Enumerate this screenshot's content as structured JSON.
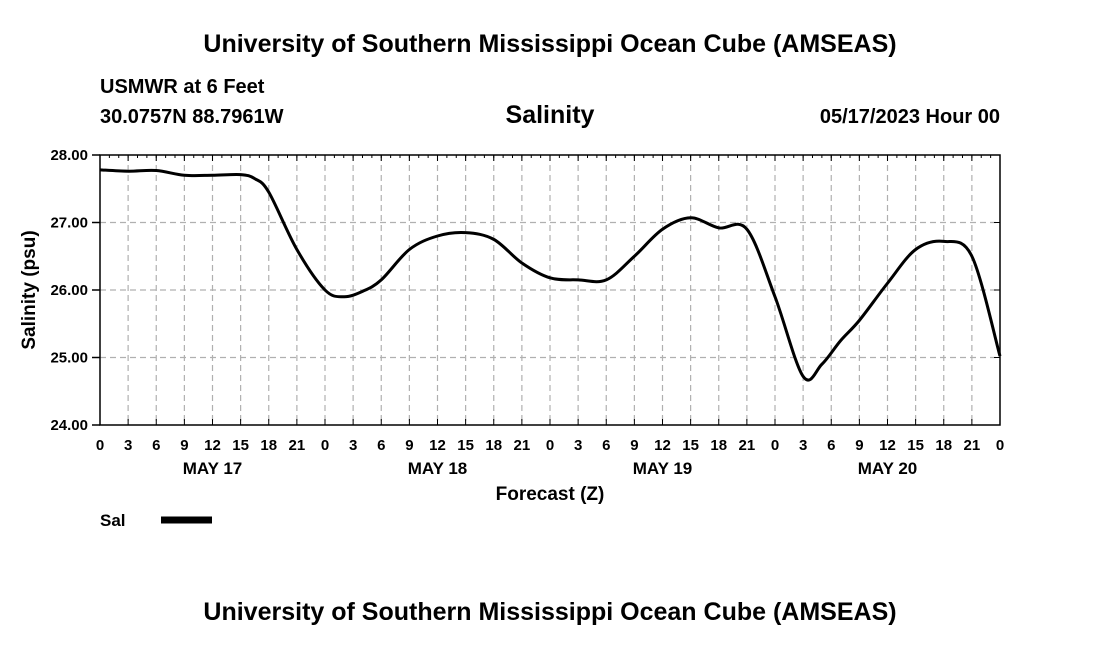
{
  "header": {
    "title": "University of Southern Mississippi Ocean Cube (AMSEAS)",
    "station": "USMWR at 6 Feet",
    "coords": "30.0757N  88.7961W",
    "datestamp": "05/17/2023 Hour 00"
  },
  "footer": {
    "title": "University of Southern Mississippi Ocean Cube (AMSEAS)"
  },
  "chart_data": {
    "type": "line",
    "title": "Salinity",
    "xlabel": "Forecast (Z)",
    "ylabel": "Salinity (psu)",
    "xlim": [
      0,
      96
    ],
    "ylim": [
      24.0,
      28.0
    ],
    "yticks": [
      "24.00",
      "25.00",
      "26.00",
      "27.00",
      "28.00"
    ],
    "xtick_labels": [
      "0",
      "3",
      "6",
      "9",
      "12",
      "15",
      "18",
      "21",
      "0",
      "3",
      "6",
      "9",
      "12",
      "15",
      "18",
      "21",
      "0",
      "3",
      "6",
      "9",
      "12",
      "15",
      "18",
      "21",
      "0",
      "3",
      "6",
      "9",
      "12",
      "15",
      "18",
      "21",
      "0"
    ],
    "day_labels": [
      "MAY 17",
      "MAY 18",
      "MAY 19",
      "MAY 20"
    ],
    "grid": true,
    "legend": [
      {
        "label": "Sal",
        "color": "#000000"
      }
    ],
    "series": [
      {
        "name": "Sal",
        "x": [
          0,
          3,
          6,
          9,
          12,
          15,
          16.5,
          18,
          21,
          24,
          26,
          28,
          30,
          33,
          36,
          39,
          42,
          45,
          48,
          51,
          54,
          57,
          60,
          63,
          66,
          69,
          72,
          75,
          77,
          79,
          81,
          84,
          87,
          90,
          93,
          96
        ],
        "values": [
          27.78,
          27.76,
          27.77,
          27.7,
          27.7,
          27.71,
          27.65,
          27.45,
          26.6,
          26.0,
          25.9,
          25.98,
          26.15,
          26.6,
          26.8,
          26.85,
          26.75,
          26.4,
          26.18,
          26.15,
          26.15,
          26.5,
          26.9,
          27.07,
          26.92,
          26.9,
          25.9,
          24.72,
          24.9,
          25.25,
          25.55,
          26.1,
          26.6,
          26.72,
          26.5,
          25.02
        ]
      }
    ]
  }
}
